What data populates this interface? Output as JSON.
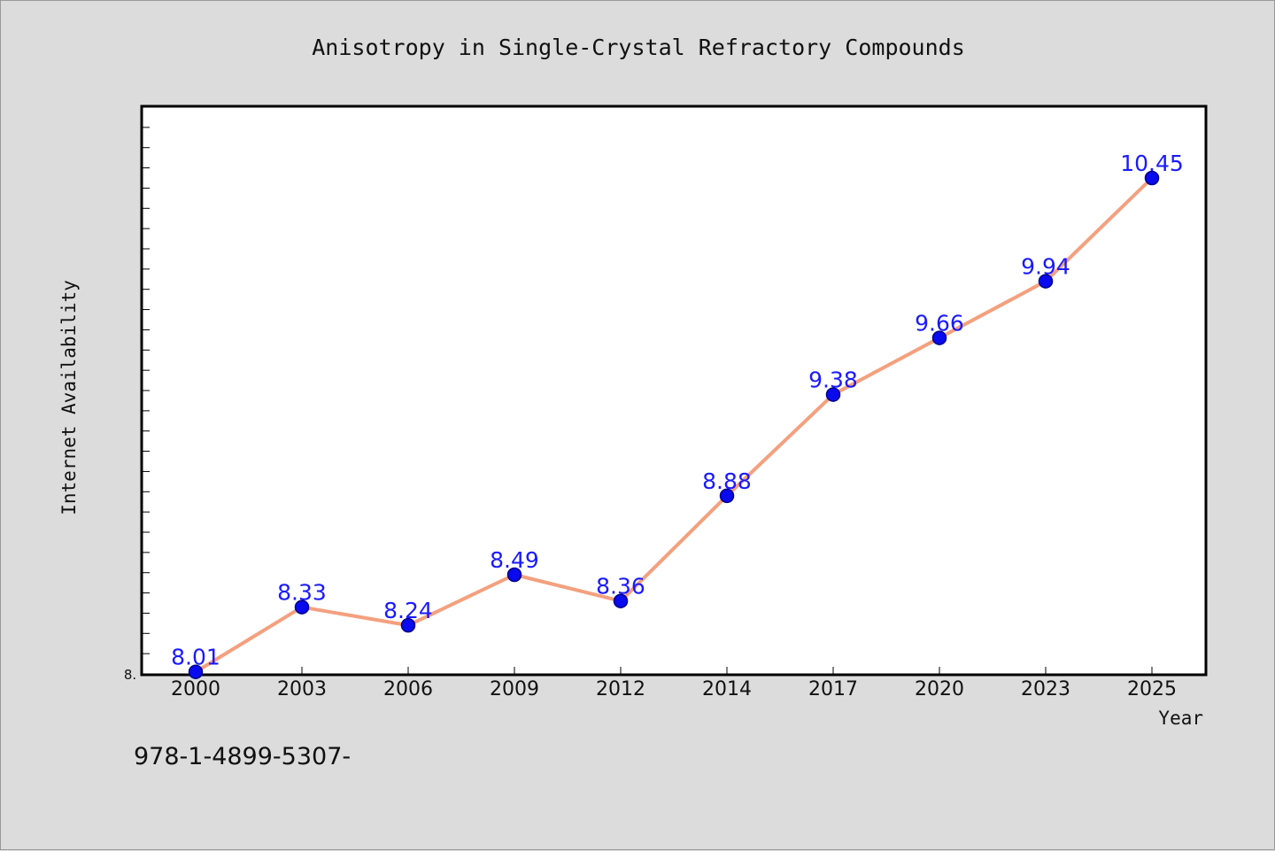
{
  "chart_data": {
    "type": "line",
    "title": "Anisotropy in Single-Crystal Refractory Compounds",
    "xlabel": "Year",
    "ylabel": "Internet Availability",
    "categories": [
      "2000",
      "2003",
      "2006",
      "2009",
      "2012",
      "2014",
      "2017",
      "2020",
      "2023",
      "2025"
    ],
    "series": [
      {
        "values": [
          8.01,
          8.33,
          8.24,
          8.49,
          8.36,
          8.88,
          9.38,
          9.66,
          9.94,
          10.45
        ]
      }
    ],
    "data_labels": [
      "8.01",
      "8.33",
      "8.24",
      "8.49",
      "8.36",
      "8.88",
      "9.38",
      "9.66",
      "9.94",
      "10.45"
    ],
    "ylim": [
      8.0,
      10.8
    ],
    "ytick_label": "8.",
    "grid": false,
    "colors": {
      "line": "#f4a07e",
      "marker": "#0a0aee",
      "marker_edge": "#00008b",
      "label": "#1a1aff",
      "plot_bg": "#ffffff",
      "page_bg": "#dcdcdc"
    }
  },
  "footer": {
    "isbn": "978-1-4899-5307-"
  }
}
